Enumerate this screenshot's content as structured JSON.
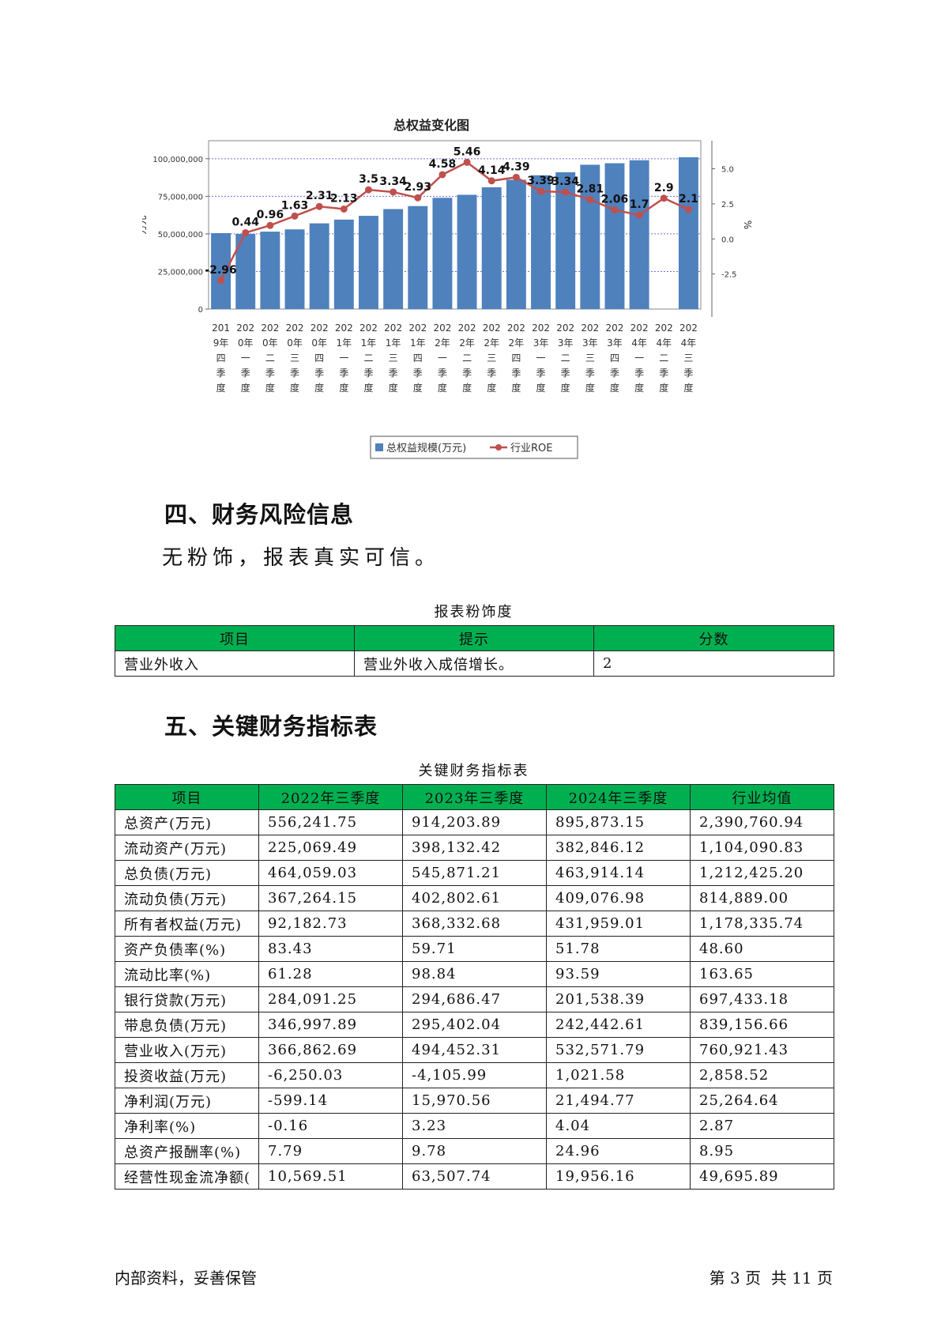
{
  "chart_data": {
    "type": "bar+line",
    "title": "总权益变化图",
    "ylabel_left": "万元",
    "ylabel_right": "%",
    "ylim_left": [
      0,
      112000000
    ],
    "ylim_right": [
      -5,
      7
    ],
    "yticks_left": [
      0,
      25000000,
      50000000,
      75000000,
      100000000
    ],
    "yticks_left_labels": [
      "0",
      "25,000,000",
      "50,000,000",
      "75,000,000",
      "100,000,000"
    ],
    "yticks_right": [
      -2.5,
      0,
      2.5,
      5
    ],
    "yticks_right_labels": [
      "-2.5",
      "0.0",
      "2.5",
      "5.0"
    ],
    "categories": [
      "2019年四季度",
      "2020年一季度",
      "2020年二季度",
      "2020年三季度",
      "2020年四季度",
      "2021年一季度",
      "2021年二季度",
      "2021年三季度",
      "2021年四季度",
      "2022年一季度",
      "2022年二季度",
      "2022年三季度",
      "2022年四季度",
      "2023年一季度",
      "2023年二季度",
      "2023年三季度",
      "2023年四季度",
      "2024年一季度",
      "2024年二季度",
      "2024年三季度"
    ],
    "series": [
      {
        "name": "总权益规模(万元)",
        "type": "bar",
        "color": "#4f81bd",
        "values": [
          50500000,
          50000000,
          51500000,
          53000000,
          57000000,
          59500000,
          62000000,
          66500000,
          68500000,
          74000000,
          76000000,
          81000000,
          86000000,
          89000000,
          91000000,
          96000000,
          97000000,
          99000000,
          null,
          101000000
        ]
      },
      {
        "name": "行业ROE",
        "type": "line",
        "color": "#c0504d",
        "values": [
          -2.96,
          0.44,
          0.96,
          1.63,
          2.31,
          2.13,
          3.5,
          3.34,
          2.93,
          4.58,
          5.46,
          4.14,
          4.39,
          3.39,
          3.34,
          2.81,
          2.06,
          1.7,
          2.9,
          2.1
        ],
        "labels": [
          "-2.96",
          "0.44",
          "0.96",
          "1.63",
          "2.31",
          "2.13",
          "3.5",
          "3.34",
          "2.93",
          "4.58",
          "5.46",
          "4.14",
          "4.39",
          "3.39",
          "3.34",
          "2.81",
          "2.06",
          "1.7",
          "2.9",
          "2.1"
        ]
      }
    ],
    "grid": true,
    "legend_position": "bottom"
  },
  "sections": {
    "risk_heading": "四、财务风险信息",
    "risk_text": "无粉饰，报表真实可信。",
    "ratio_heading": "五、关键财务指标表"
  },
  "risk_table": {
    "caption": "报表粉饰度",
    "headers": [
      "项目",
      "提示",
      "分数"
    ],
    "rows": [
      [
        "营业外收入",
        "营业外收入成倍增长。",
        "2"
      ]
    ]
  },
  "ratio_table": {
    "caption": "关键财务指标表",
    "headers": [
      "项目",
      "2022年三季度",
      "2023年三季度",
      "2024年三季度",
      "行业均值"
    ],
    "rows": [
      [
        "总资产(万元)",
        "556,241.75",
        "914,203.89",
        "895,873.15",
        "2,390,760.94"
      ],
      [
        "流动资产(万元)",
        "225,069.49",
        "398,132.42",
        "382,846.12",
        "1,104,090.83"
      ],
      [
        "总负债(万元)",
        "464,059.03",
        "545,871.21",
        "463,914.14",
        "1,212,425.20"
      ],
      [
        "流动负债(万元)",
        "367,264.15",
        "402,802.61",
        "409,076.98",
        "814,889.00"
      ],
      [
        "所有者权益(万元)",
        "92,182.73",
        "368,332.68",
        "431,959.01",
        "1,178,335.74"
      ],
      [
        "资产负债率(%)",
        "83.43",
        "59.71",
        "51.78",
        "48.60"
      ],
      [
        "流动比率(%)",
        "61.28",
        "98.84",
        "93.59",
        "163.65"
      ],
      [
        "银行贷款(万元)",
        "284,091.25",
        "294,686.47",
        "201,538.39",
        "697,433.18"
      ],
      [
        "带息负债(万元)",
        "346,997.89",
        "295,402.04",
        "242,442.61",
        "839,156.66"
      ],
      [
        "营业收入(万元)",
        "366,862.69",
        "494,452.31",
        "532,571.79",
        "760,921.43"
      ],
      [
        "投资收益(万元)",
        "-6,250.03",
        "-4,105.99",
        "1,021.58",
        "2,858.52"
      ],
      [
        "净利润(万元)",
        "-599.14",
        "15,970.56",
        "21,494.77",
        "25,264.64"
      ],
      [
        "净利率(%)",
        "-0.16",
        "3.23",
        "4.04",
        "2.87"
      ],
      [
        "总资产报酬率(%)",
        "7.79",
        "9.78",
        "24.96",
        "8.95"
      ],
      [
        "经营性现金流净额(",
        "10,569.51",
        "63,507.74",
        "19,956.16",
        "49,695.89"
      ]
    ]
  },
  "footer": {
    "left": "内部资料，妥善保管",
    "page_prefix": "第",
    "page_number": "3",
    "page_mid": "页  共",
    "page_total": "11",
    "page_suffix": "页"
  }
}
